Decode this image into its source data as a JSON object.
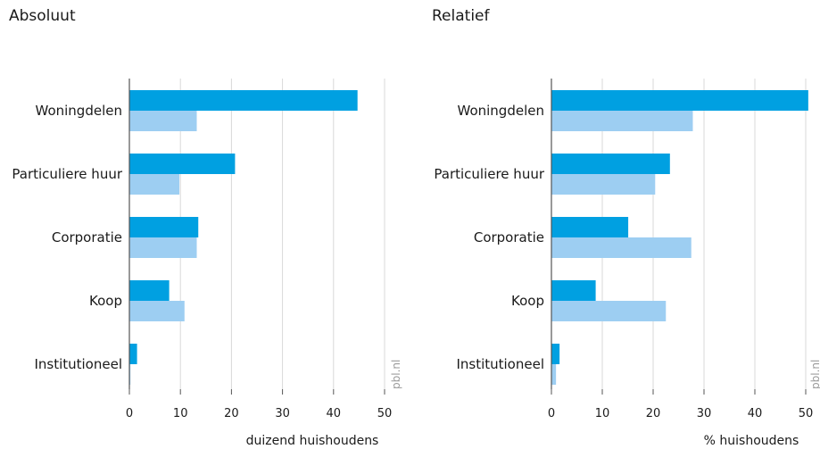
{
  "chart_data": [
    {
      "type": "bar",
      "orientation": "horizontal",
      "title": "Absoluut",
      "xlabel": "duizend huishoudens",
      "categories": [
        "Woningdelen",
        "Particuliere huur",
        "Corporatie",
        "Koop",
        "Institutioneel"
      ],
      "series": [
        {
          "values": [
            44.7,
            20.7,
            13.5,
            7.8,
            1.5
          ]
        },
        {
          "values": [
            13.2,
            9.8,
            13.2,
            10.8,
            0.2
          ]
        }
      ],
      "xlim": [
        0,
        50
      ],
      "xticks": [
        0,
        10,
        20,
        30,
        40,
        50
      ],
      "grid": true,
      "watermark": "pbl.nl"
    },
    {
      "type": "bar",
      "orientation": "horizontal",
      "title": "Relatief",
      "xlabel": "% huishoudens",
      "categories": [
        "Woningdelen",
        "Particuliere huur",
        "Corporatie",
        "Koop",
        "Institutioneel"
      ],
      "series": [
        {
          "values": [
            50.5,
            23.3,
            15.1,
            8.7,
            1.6
          ]
        },
        {
          "values": [
            27.8,
            20.4,
            27.5,
            22.5,
            0.9
          ]
        }
      ],
      "xlim": [
        0,
        50
      ],
      "xticks": [
        0,
        10,
        20,
        30,
        40,
        50
      ],
      "grid": true,
      "watermark": "pbl.nl"
    }
  ],
  "colors": {
    "series_dark": "#00a0e1",
    "series_light": "#9dcef2",
    "grid": "#d9d9d9",
    "axis": "#555555"
  }
}
